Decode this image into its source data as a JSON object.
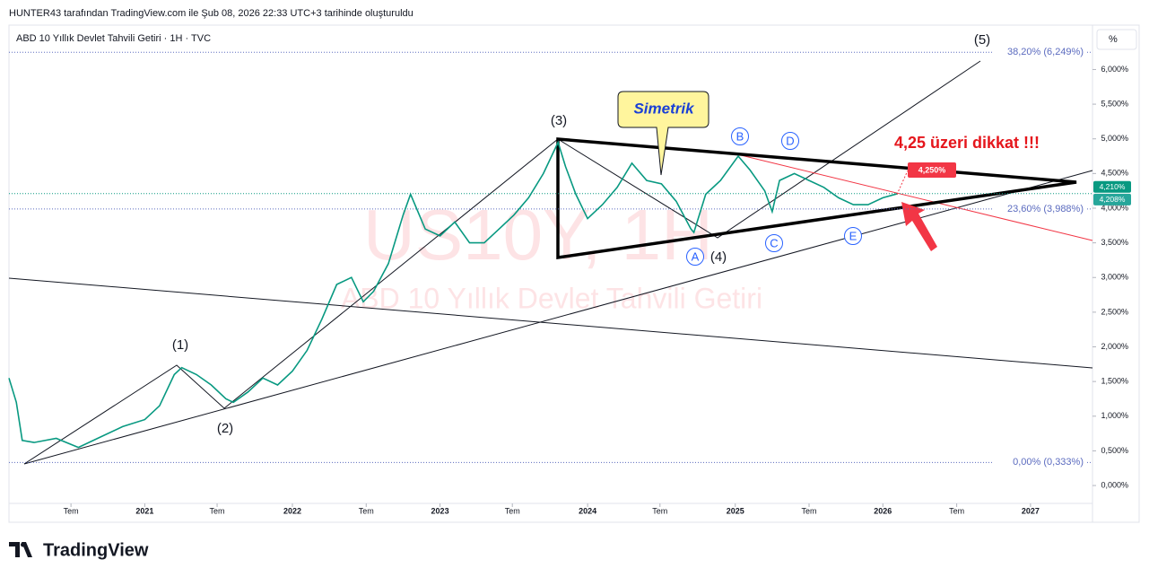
{
  "header": "HUNTER43 tarafından TradingView.com ile Şub 08, 2026 22:33 UTC+3 tarihinde oluşturuldu",
  "logo": "TradingView",
  "chart_data": {
    "type": "line",
    "title": "ABD 10 Yıllık Devlet Tahvili Getiri · 1H · TVC",
    "watermark": "US10Y, 1H",
    "watermark_subtitle": "ABD 10 Yıllık Devlet Tahvili Getiri",
    "scale_button": "%",
    "xlim": [
      2020.08,
      2027.42
    ],
    "ylim": [
      -0.53,
      6.64
    ],
    "xticks": [
      {
        "value": 2020.5,
        "label": "Tem"
      },
      2021,
      {
        "value": 2021.49,
        "label": "Tem"
      },
      2022,
      {
        "value": 2022.5,
        "label": "Tem"
      },
      2023,
      {
        "value": 2023.49,
        "label": "Tem"
      },
      2024,
      {
        "value": 2024.49,
        "label": "Tem"
      },
      2025,
      {
        "value": 2025.5,
        "label": "Tem"
      },
      2026,
      {
        "value": 2026.5,
        "label": "Tem"
      },
      2027
    ],
    "yticks": [
      {
        "value": 0,
        "label": "0,000%"
      },
      {
        "value": 0.5,
        "label": "0,500%"
      },
      {
        "value": 1,
        "label": "1,000%"
      },
      {
        "value": 1.5,
        "label": "1,500%"
      },
      {
        "value": 2,
        "label": "2,000%"
      },
      {
        "value": 2.5,
        "label": "2,500%"
      },
      {
        "value": 3,
        "label": "3,000%"
      },
      {
        "value": 3.5,
        "label": "3,500%"
      },
      {
        "value": 4,
        "label": "4,000%"
      },
      {
        "value": 4.5,
        "label": "4,500%"
      },
      {
        "value": 5,
        "label": "5,000%"
      },
      {
        "value": 5.5,
        "label": "5,500%"
      },
      {
        "value": 6,
        "label": "6,000%"
      }
    ],
    "series": [
      {
        "name": "US10Y",
        "color": "#089981",
        "x": [
          2020.08,
          2020.13,
          2020.17,
          2020.25,
          2020.4,
          2020.55,
          2020.7,
          2020.85,
          2021.0,
          2021.1,
          2021.2,
          2021.25,
          2021.35,
          2021.45,
          2021.55,
          2021.6,
          2021.7,
          2021.8,
          2021.9,
          2022.0,
          2022.1,
          2022.2,
          2022.3,
          2022.4,
          2022.48,
          2022.55,
          2022.65,
          2022.75,
          2022.8,
          2022.9,
          2023.0,
          2023.1,
          2023.2,
          2023.3,
          2023.4,
          2023.5,
          2023.6,
          2023.7,
          2023.8,
          2023.85,
          2023.92,
          2024.0,
          2024.1,
          2024.2,
          2024.3,
          2024.4,
          2024.5,
          2024.6,
          2024.7,
          2024.72,
          2024.8,
          2024.9,
          2025.02,
          2025.1,
          2025.2,
          2025.25,
          2025.3,
          2025.4,
          2025.5,
          2025.6,
          2025.7,
          2025.8,
          2025.9,
          2026.0,
          2026.1
        ],
        "values": [
          1.55,
          1.2,
          0.65,
          0.62,
          0.68,
          0.55,
          0.7,
          0.85,
          0.95,
          1.15,
          1.6,
          1.7,
          1.6,
          1.45,
          1.25,
          1.2,
          1.35,
          1.55,
          1.45,
          1.65,
          1.95,
          2.4,
          2.9,
          3.0,
          2.65,
          2.8,
          3.2,
          3.9,
          4.2,
          3.7,
          3.6,
          3.8,
          3.5,
          3.5,
          3.7,
          3.9,
          4.15,
          4.5,
          4.95,
          4.6,
          4.2,
          3.85,
          4.05,
          4.3,
          4.65,
          4.4,
          4.35,
          4.1,
          3.7,
          3.65,
          4.2,
          4.4,
          4.75,
          4.55,
          4.25,
          3.95,
          4.4,
          4.5,
          4.4,
          4.3,
          4.15,
          4.05,
          4.05,
          4.15,
          4.21
        ]
      }
    ],
    "levels": [
      {
        "value": 6.249,
        "label": "38,20% (6,249%)"
      },
      {
        "value": 3.988,
        "label": "23,60% (3,988%)"
      },
      {
        "value": 0.333,
        "label": "0,00% (0,333%)"
      }
    ],
    "price_badges": [
      {
        "value": 4.21,
        "label": "4,210%"
      },
      {
        "value": 4.208,
        "label": "4,208%"
      }
    ],
    "alert_badge": {
      "value": 4.25,
      "label": "4,250%"
    },
    "waves": [
      "(1)",
      "(2)",
      "(3)",
      "(4)",
      "(5)"
    ],
    "points": [
      "A",
      "B",
      "C",
      "D",
      "E"
    ],
    "callout": "Simetrik",
    "note": "4,25 üzeri dikkat !!!"
  }
}
